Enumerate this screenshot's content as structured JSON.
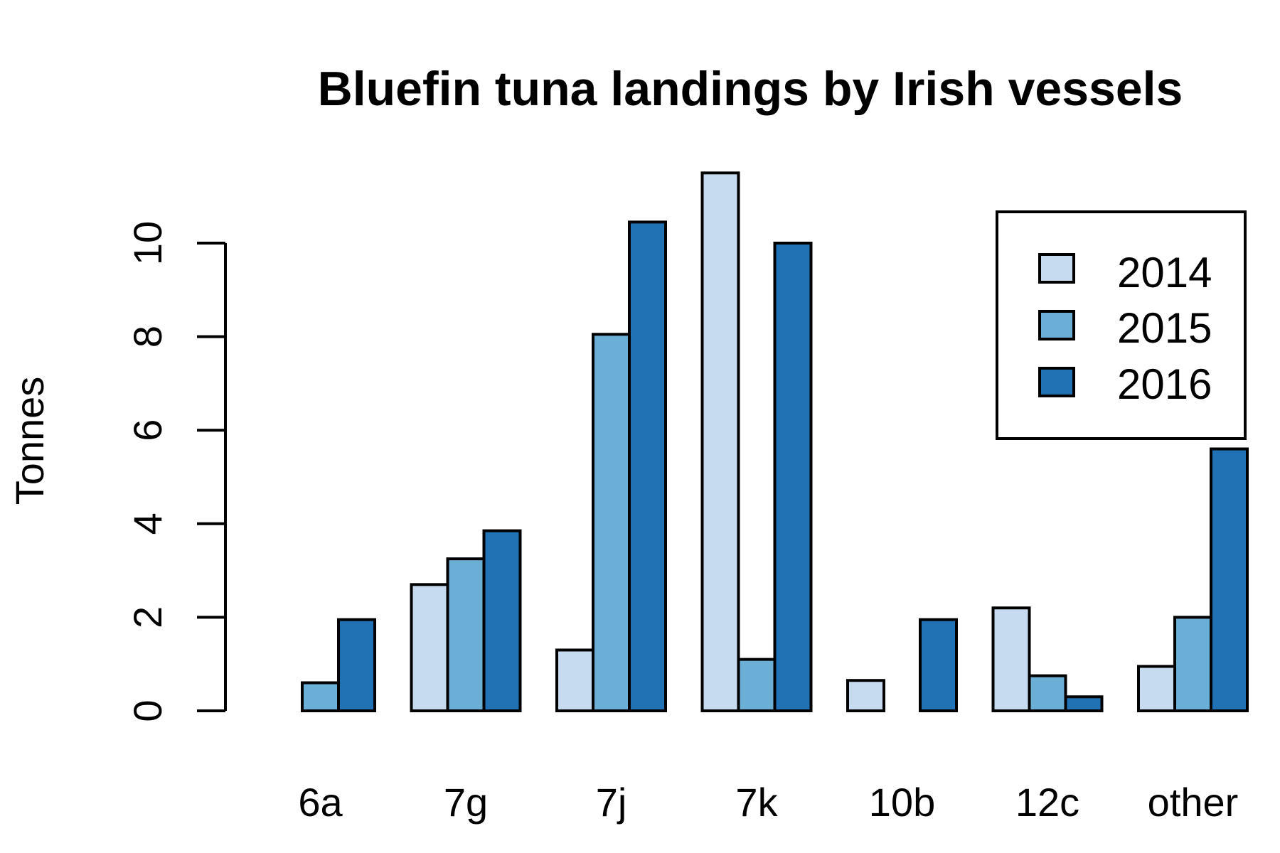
{
  "chart_data": {
    "type": "bar",
    "title": "Bluefin tuna landings by Irish vessels",
    "xlabel": "",
    "ylabel": "Tonnes",
    "categories": [
      "6a",
      "7g",
      "7j",
      "7k",
      "10b",
      "12c",
      "other"
    ],
    "series": [
      {
        "name": "2014",
        "color": "#c6dbef",
        "values": [
          0,
          2.7,
          1.3,
          11.5,
          0.65,
          2.2,
          0.95
        ]
      },
      {
        "name": "2015",
        "color": "#6baed6",
        "values": [
          0.6,
          3.25,
          8.05,
          1.1,
          0,
          0.75,
          2.0
        ]
      },
      {
        "name": "2016",
        "color": "#2171b5",
        "values": [
          1.95,
          3.85,
          10.45,
          10.0,
          1.95,
          0.3,
          5.6
        ]
      }
    ],
    "yticks": [
      0,
      2,
      4,
      6,
      8,
      10
    ],
    "ylim": [
      0,
      12
    ],
    "legend_position": "top-right",
    "grid": false
  }
}
